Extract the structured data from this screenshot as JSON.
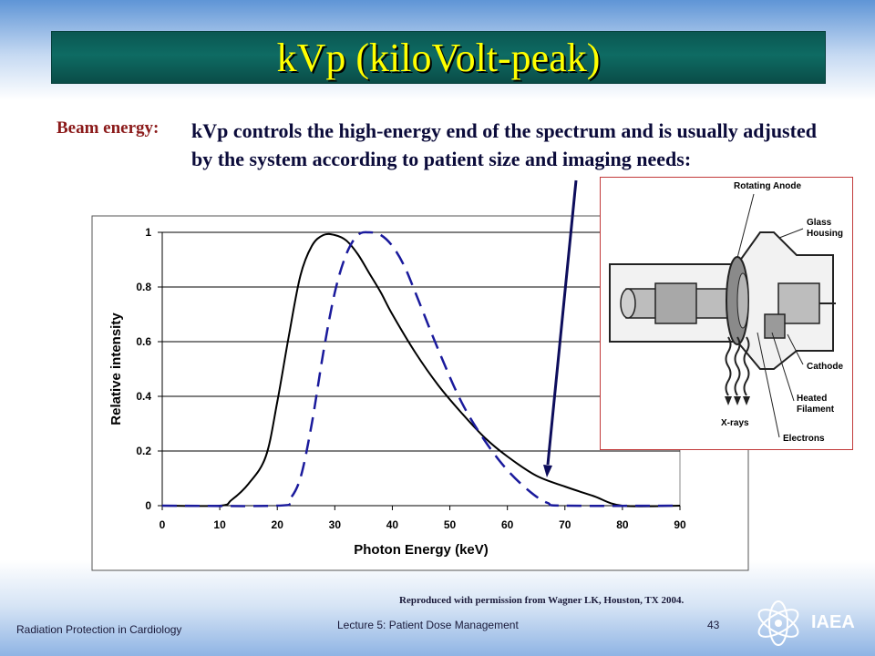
{
  "slide": {
    "title": "kVp (kiloVolt-peak)",
    "beam_label": "Beam energy:",
    "body_text": "kVp controls the high-energy end of the spectrum and is usually adjusted by the system according to patient size and imaging needs:",
    "credit": "Reproduced with permission from Wagner LK, Houston, TX 2004.",
    "footer_left": "Radiation Protection in Cardiology",
    "footer_center": "Lecture 5: Patient Dose Management",
    "page_number": "43",
    "org": "IAEA"
  },
  "tube_diagram": {
    "labels": {
      "rotating_anode": "Rotating Anode",
      "glass": "Glass",
      "housing": "Housing",
      "cathode": "Cathode",
      "heated": "Heated",
      "filament": "Filament",
      "xrays": "X-rays",
      "electrons": "Electrons"
    }
  },
  "chart_data": {
    "type": "line",
    "xlabel": "Photon Energy (keV)",
    "ylabel": "Relative intensity",
    "xlim": [
      0,
      90
    ],
    "ylim": [
      0,
      1
    ],
    "xticks": [
      0,
      10,
      20,
      30,
      40,
      50,
      60,
      70,
      80,
      90
    ],
    "yticks": [
      0,
      0.2,
      0.4,
      0.6,
      0.8,
      1
    ],
    "ytick_labels": [
      "0",
      "0.2",
      "0.4",
      "0.6",
      "0.8",
      "1"
    ],
    "grid": "horizontal",
    "series": [
      {
        "style": "solid",
        "color": "#000000",
        "x": [
          0,
          10,
          12,
          15,
          18,
          20,
          22,
          24,
          26,
          28,
          30,
          32,
          34,
          36,
          38,
          40,
          44,
          48,
          52,
          56,
          60,
          65,
          70,
          75,
          80,
          90
        ],
        "y": [
          0,
          0,
          0.02,
          0.08,
          0.18,
          0.38,
          0.62,
          0.84,
          0.95,
          0.99,
          0.99,
          0.97,
          0.92,
          0.85,
          0.78,
          0.7,
          0.56,
          0.44,
          0.34,
          0.25,
          0.18,
          0.11,
          0.07,
          0.035,
          0,
          0
        ]
      },
      {
        "style": "dashed",
        "color": "#1a1a9c",
        "x": [
          0,
          20,
          22,
          24,
          26,
          28,
          30,
          32,
          34,
          36,
          38,
          40,
          42,
          44,
          48,
          52,
          56,
          60,
          64,
          67,
          70,
          90
        ],
        "y": [
          0,
          0,
          0.02,
          0.1,
          0.3,
          0.56,
          0.78,
          0.92,
          0.99,
          1.0,
          0.99,
          0.95,
          0.88,
          0.78,
          0.57,
          0.38,
          0.24,
          0.13,
          0.05,
          0.01,
          0,
          0
        ]
      }
    ]
  }
}
